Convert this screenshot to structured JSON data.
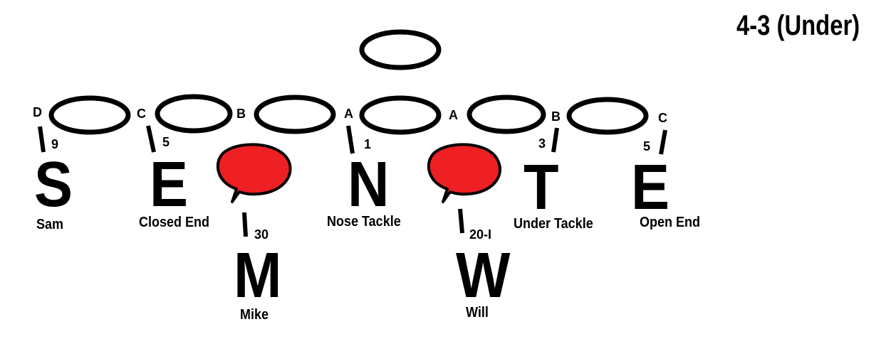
{
  "title": "4-3 (Under)",
  "colors": {
    "stroke": "#000000",
    "bubble": "#ee2024",
    "text": "#000000"
  },
  "gaps": [
    "D",
    "C",
    "B",
    "A",
    "A",
    "B",
    "C"
  ],
  "defenders": [
    {
      "letter": "S",
      "name": "Sam",
      "technique": "9"
    },
    {
      "letter": "E",
      "name": "Closed End",
      "technique": "5"
    },
    {
      "letter": "N",
      "name": "Nose Tackle",
      "technique": "1"
    },
    {
      "letter": "T",
      "name": "Under Tackle",
      "technique": "3"
    },
    {
      "letter": "E",
      "name": "Open End",
      "technique": "5"
    },
    {
      "letter": "M",
      "name": "Mike",
      "technique": "30"
    },
    {
      "letter": "W",
      "name": "Will",
      "technique": "20-I"
    }
  ]
}
